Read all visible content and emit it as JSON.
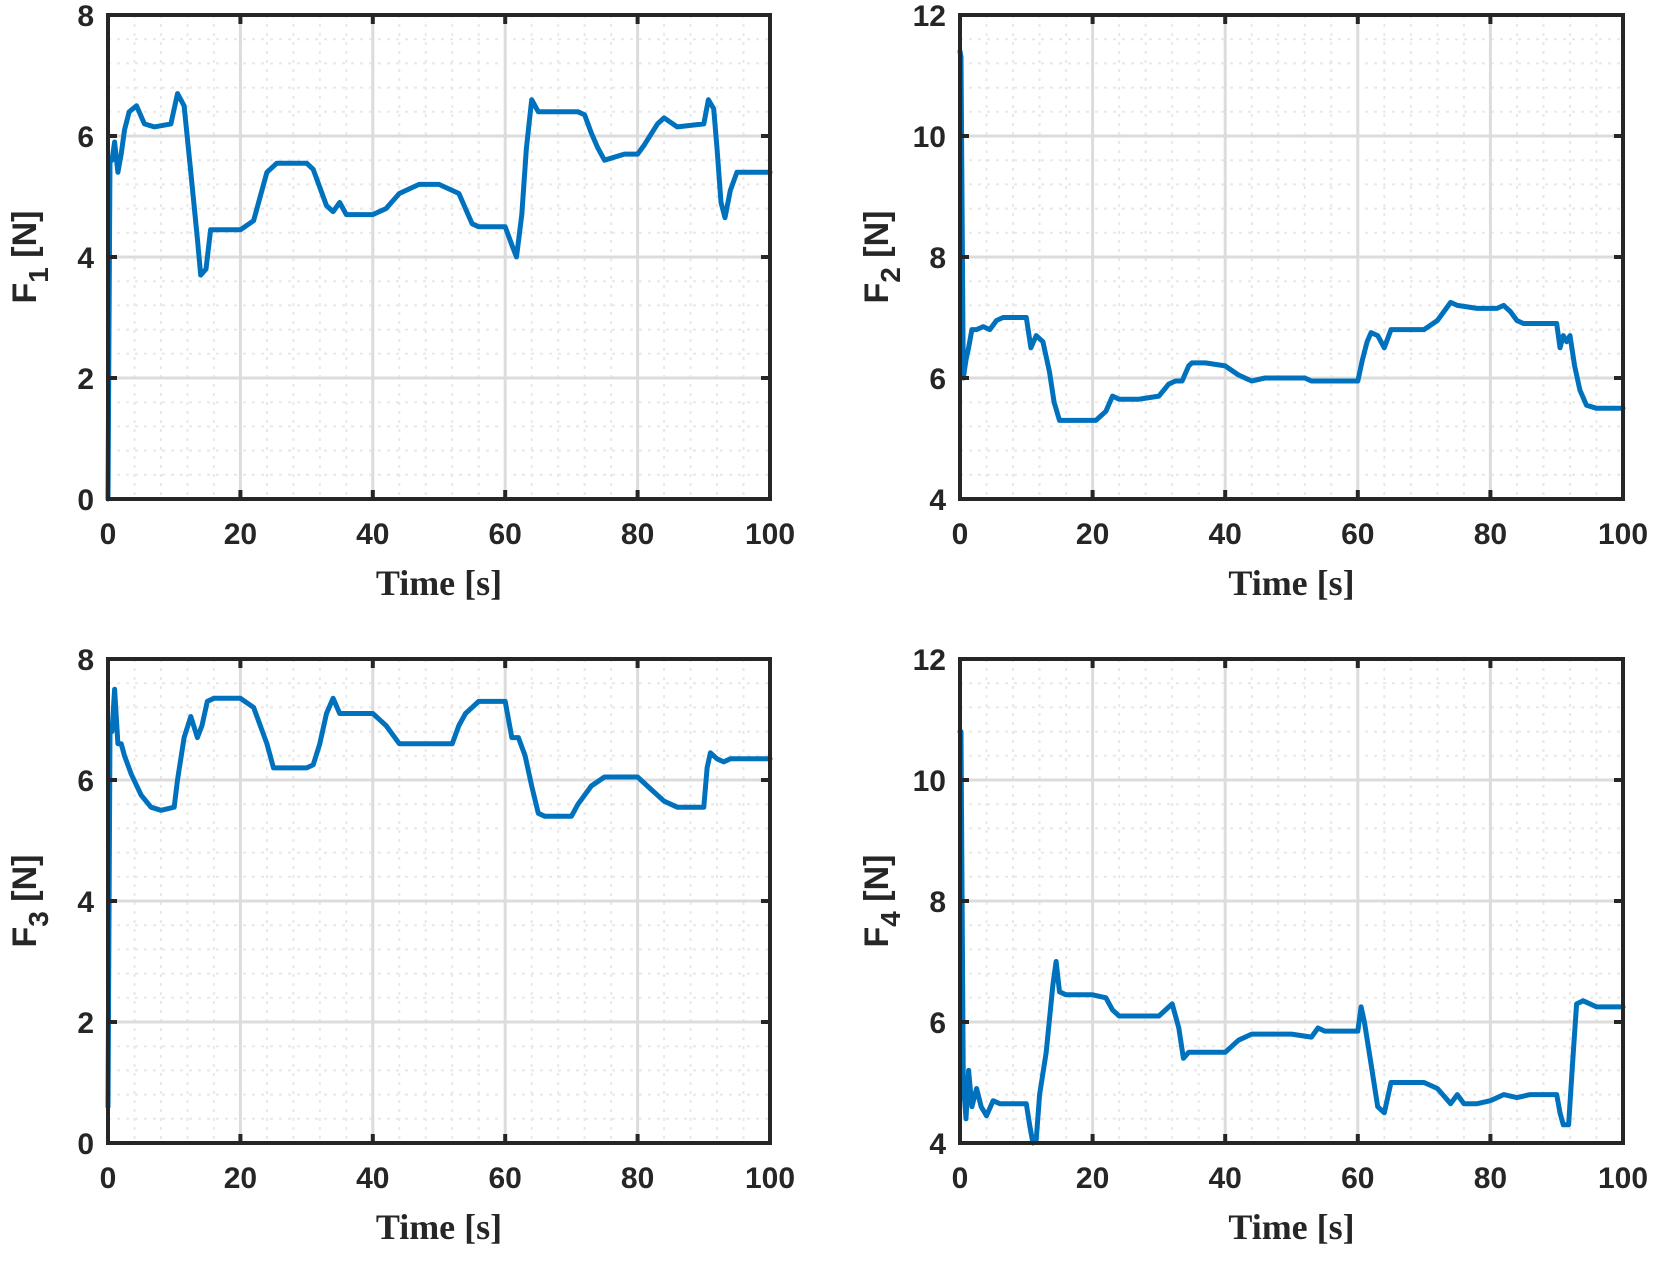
{
  "chart_data": [
    {
      "type": "line",
      "panel": "top-left",
      "title": "",
      "xlabel": "Time [s]",
      "ylabel_main": "F",
      "ylabel_sub": "1",
      "ylabel_unit": " [N]",
      "xlim": [
        0,
        100
      ],
      "ylim": [
        0,
        8
      ],
      "xticks": [
        0,
        20,
        40,
        60,
        80,
        100
      ],
      "xtick_labels": [
        "0",
        "20",
        "40",
        "60",
        "80",
        "100"
      ],
      "yticks": [
        0,
        2,
        4,
        6,
        8
      ],
      "ytick_labels": [
        "0",
        "2",
        "4",
        "6",
        "8"
      ],
      "grid": true,
      "series": [
        {
          "name": "F1",
          "color": "#0072bd",
          "x": [
            0,
            0.3,
            0.6,
            1.0,
            1.5,
            2.0,
            2.5,
            3.2,
            4.3,
            5.5,
            7,
            9.5,
            10.5,
            11.5,
            12.5,
            13.5,
            14.0,
            14.8,
            15.5,
            17,
            20,
            22,
            24,
            25.5,
            27,
            30,
            31,
            32,
            33,
            34,
            35,
            36,
            40,
            42,
            44,
            47,
            50,
            53,
            54,
            55,
            56,
            60,
            61,
            61.7,
            62.5,
            63.2,
            64,
            65,
            66,
            70,
            71,
            72,
            73,
            74,
            75,
            78,
            80,
            81,
            83,
            84,
            86,
            90,
            90.7,
            91.5,
            92,
            92.6,
            93.2,
            94,
            95,
            100
          ],
          "y": [
            0,
            5.6,
            5.6,
            5.9,
            5.4,
            5.7,
            6.1,
            6.4,
            6.5,
            6.2,
            6.15,
            6.2,
            6.7,
            6.5,
            5.4,
            4.3,
            3.7,
            3.8,
            4.45,
            4.45,
            4.45,
            4.6,
            5.4,
            5.55,
            5.55,
            5.55,
            5.45,
            5.15,
            4.85,
            4.75,
            4.9,
            4.7,
            4.7,
            4.8,
            5.05,
            5.2,
            5.2,
            5.05,
            4.8,
            4.55,
            4.5,
            4.5,
            4.2,
            4.0,
            4.7,
            5.8,
            6.6,
            6.4,
            6.4,
            6.4,
            6.4,
            6.35,
            6.05,
            5.8,
            5.6,
            5.7,
            5.7,
            5.85,
            6.2,
            6.3,
            6.15,
            6.2,
            6.6,
            6.45,
            5.8,
            4.9,
            4.65,
            5.1,
            5.4,
            5.4
          ]
        }
      ]
    },
    {
      "type": "line",
      "panel": "top-right",
      "title": "",
      "xlabel": "Time [s]",
      "ylabel_main": "F",
      "ylabel_sub": "2",
      "ylabel_unit": " [N]",
      "xlim": [
        0,
        100
      ],
      "ylim": [
        4,
        12
      ],
      "xticks": [
        0,
        20,
        40,
        60,
        80,
        100
      ],
      "xtick_labels": [
        "0",
        "20",
        "40",
        "60",
        "80",
        "100"
      ],
      "yticks": [
        4,
        6,
        8,
        10,
        12
      ],
      "ytick_labels": [
        "4",
        "6",
        "8",
        "10",
        "12"
      ],
      "grid": true,
      "series": [
        {
          "name": "F2",
          "color": "#0072bd",
          "x": [
            0,
            0.15,
            0.5,
            0.9,
            1.3,
            1.8,
            2.5,
            3.5,
            4.5,
            5.5,
            6.5,
            8,
            10,
            10.7,
            11.5,
            12.5,
            13.5,
            14.2,
            15,
            17,
            19,
            20.5,
            22,
            23,
            24,
            25.5,
            27,
            30,
            31.5,
            32.5,
            33.5,
            34.5,
            35,
            35.5,
            36,
            37,
            40,
            42,
            44,
            46,
            50,
            52,
            53,
            55,
            56,
            60,
            60.7,
            61.4,
            62,
            63,
            64,
            65,
            66,
            69,
            70,
            72,
            73,
            74,
            75,
            78,
            80,
            81,
            82,
            83,
            84,
            85,
            88,
            90,
            90.5,
            91,
            91.5,
            92,
            92.7,
            93.5,
            94.5,
            96,
            100
          ],
          "y": [
            11.4,
            11.3,
            6.0,
            6.3,
            6.5,
            6.8,
            6.8,
            6.85,
            6.8,
            6.95,
            7.0,
            7.0,
            7.0,
            6.5,
            6.7,
            6.6,
            6.1,
            5.6,
            5.3,
            5.3,
            5.3,
            5.3,
            5.45,
            5.7,
            5.65,
            5.65,
            5.65,
            5.7,
            5.9,
            5.95,
            5.95,
            6.2,
            6.25,
            6.25,
            6.25,
            6.25,
            6.2,
            6.05,
            5.95,
            6.0,
            6.0,
            6.0,
            5.95,
            5.95,
            5.95,
            5.95,
            6.3,
            6.6,
            6.75,
            6.7,
            6.5,
            6.8,
            6.8,
            6.8,
            6.8,
            6.95,
            7.1,
            7.25,
            7.2,
            7.15,
            7.15,
            7.15,
            7.2,
            7.1,
            6.95,
            6.9,
            6.9,
            6.9,
            6.5,
            6.7,
            6.6,
            6.7,
            6.2,
            5.8,
            5.55,
            5.5,
            5.5
          ]
        }
      ]
    },
    {
      "type": "line",
      "panel": "bottom-left",
      "title": "",
      "xlabel": "Time [s]",
      "ylabel_main": "F",
      "ylabel_sub": "3",
      "ylabel_unit": " [N]",
      "xlim": [
        0,
        100
      ],
      "ylim": [
        0,
        8
      ],
      "xticks": [
        0,
        20,
        40,
        60,
        80,
        100
      ],
      "xtick_labels": [
        "0",
        "20",
        "40",
        "60",
        "80",
        "100"
      ],
      "yticks": [
        0,
        2,
        4,
        6,
        8
      ],
      "ytick_labels": [
        "0",
        "2",
        "4",
        "6",
        "8"
      ],
      "grid": true,
      "series": [
        {
          "name": "F3",
          "color": "#0072bd",
          "x": [
            0,
            0.3,
            0.6,
            1.0,
            1.5,
            2.0,
            2.5,
            3.5,
            5,
            6.5,
            8,
            10,
            10.5,
            11.5,
            12.5,
            13.5,
            14.2,
            15,
            16,
            20,
            22,
            24,
            25,
            26,
            30,
            31,
            32,
            33,
            34,
            35,
            37,
            40,
            42,
            44,
            46,
            50,
            52,
            53,
            54,
            55,
            56,
            60,
            61,
            62,
            63,
            64,
            65,
            66,
            70,
            71,
            73,
            75,
            80,
            82,
            84,
            86,
            88,
            90,
            90.5,
            91,
            92,
            93,
            94,
            96,
            100
          ],
          "y": [
            0.6,
            6.8,
            6.8,
            7.5,
            6.6,
            6.6,
            6.4,
            6.1,
            5.75,
            5.55,
            5.5,
            5.55,
            6.0,
            6.7,
            7.05,
            6.7,
            6.9,
            7.3,
            7.35,
            7.35,
            7.2,
            6.6,
            6.2,
            6.2,
            6.2,
            6.25,
            6.6,
            7.1,
            7.35,
            7.1,
            7.1,
            7.1,
            6.9,
            6.6,
            6.6,
            6.6,
            6.6,
            6.9,
            7.1,
            7.2,
            7.3,
            7.3,
            6.7,
            6.7,
            6.4,
            5.9,
            5.45,
            5.4,
            5.4,
            5.6,
            5.9,
            6.05,
            6.05,
            5.85,
            5.65,
            5.55,
            5.55,
            5.55,
            6.2,
            6.45,
            6.35,
            6.3,
            6.35,
            6.35,
            6.35
          ]
        }
      ]
    },
    {
      "type": "line",
      "panel": "bottom-right",
      "title": "",
      "xlabel": "Time [s]",
      "ylabel_main": "F",
      "ylabel_sub": "4",
      "ylabel_unit": " [N]",
      "xlim": [
        0,
        100
      ],
      "ylim": [
        4,
        12
      ],
      "xticks": [
        0,
        20,
        40,
        60,
        80,
        100
      ],
      "xtick_labels": [
        "0",
        "20",
        "40",
        "60",
        "80",
        "100"
      ],
      "yticks": [
        4,
        6,
        8,
        10,
        12
      ],
      "ytick_labels": [
        "4",
        "6",
        "8",
        "10",
        "12"
      ],
      "grid": true,
      "series": [
        {
          "name": "F4",
          "color": "#0072bd",
          "x": [
            0,
            0.15,
            0.5,
            0.9,
            1.3,
            1.8,
            2.5,
            3.2,
            4,
            5,
            6,
            10,
            10.5,
            11.0,
            11.5,
            12,
            13,
            14,
            14.5,
            15,
            16,
            20,
            22,
            23,
            24,
            25,
            30,
            32,
            33,
            33.7,
            34.5,
            35.5,
            40,
            42,
            44,
            46,
            50,
            53,
            54,
            55,
            56,
            60,
            60.5,
            61,
            62,
            63,
            64,
            65,
            66,
            70,
            72,
            74,
            75,
            76,
            78,
            80,
            82,
            84,
            86,
            90,
            90.5,
            91,
            91.8,
            92.5,
            93,
            94,
            96,
            100
          ],
          "y": [
            10.8,
            10.8,
            5.0,
            4.4,
            5.2,
            4.6,
            4.9,
            4.6,
            4.45,
            4.7,
            4.65,
            4.65,
            4.3,
            4.0,
            4.05,
            4.8,
            5.5,
            6.6,
            7.0,
            6.5,
            6.45,
            6.45,
            6.4,
            6.2,
            6.1,
            6.1,
            6.1,
            6.3,
            5.9,
            5.4,
            5.5,
            5.5,
            5.5,
            5.7,
            5.8,
            5.8,
            5.8,
            5.75,
            5.9,
            5.85,
            5.85,
            5.85,
            6.25,
            6.0,
            5.3,
            4.6,
            4.5,
            5.0,
            5.0,
            5.0,
            4.9,
            4.65,
            4.8,
            4.65,
            4.65,
            4.7,
            4.8,
            4.75,
            4.8,
            4.8,
            4.5,
            4.3,
            4.3,
            5.5,
            6.3,
            6.35,
            6.25,
            6.25
          ]
        }
      ]
    }
  ]
}
